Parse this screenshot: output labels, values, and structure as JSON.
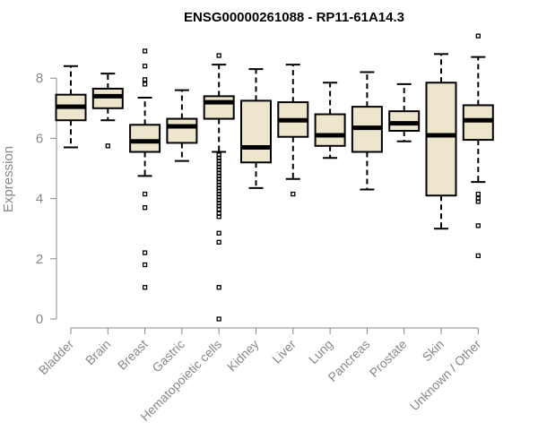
{
  "chart_data": {
    "type": "boxplot",
    "title": "ENSG00000261088 - RP11-61A14.3",
    "ylabel": "Expression",
    "ylim": [
      0,
      9.5
    ],
    "yticks": [
      0,
      2,
      4,
      6,
      8
    ],
    "box_fill": "#ede5cc",
    "categories": [
      "Bladder",
      "Brain",
      "Breast",
      "Gastric",
      "Hematopoietic cells",
      "Kidney",
      "Liver",
      "Lung",
      "Pancreas",
      "Prostate",
      "Skin",
      "Unknown / Other"
    ],
    "boxes": [
      {
        "min": 5.7,
        "q1": 6.6,
        "median": 7.05,
        "q3": 7.45,
        "max": 8.4,
        "outliers": []
      },
      {
        "min": 6.6,
        "q1": 7.0,
        "median": 7.4,
        "q3": 7.65,
        "max": 8.15,
        "outliers": [
          5.75
        ]
      },
      {
        "min": 4.75,
        "q1": 5.55,
        "median": 5.9,
        "q3": 6.45,
        "max": 7.35,
        "outliers": [
          8.9,
          8.4,
          7.95,
          7.8,
          4.15,
          3.7,
          2.2,
          1.8,
          1.05
        ]
      },
      {
        "min": 5.25,
        "q1": 5.85,
        "median": 6.4,
        "q3": 6.65,
        "max": 7.6,
        "outliers": []
      },
      {
        "min": 5.55,
        "q1": 6.65,
        "median": 7.2,
        "q3": 7.4,
        "max": 8.45,
        "outliers": [
          8.75,
          5.45,
          5.35,
          5.25,
          5.15,
          5.05,
          4.95,
          4.85,
          4.75,
          4.65,
          4.55,
          4.45,
          4.35,
          4.25,
          4.15,
          4.05,
          3.95,
          3.85,
          3.75,
          3.65,
          3.5,
          3.4,
          2.85,
          2.55,
          1.05,
          0.0
        ]
      },
      {
        "min": 4.35,
        "q1": 5.2,
        "median": 5.7,
        "q3": 7.25,
        "max": 8.3,
        "outliers": []
      },
      {
        "min": 4.65,
        "q1": 6.05,
        "median": 6.6,
        "q3": 7.2,
        "max": 8.45,
        "outliers": [
          4.15
        ]
      },
      {
        "min": 5.35,
        "q1": 5.75,
        "median": 6.1,
        "q3": 6.8,
        "max": 7.85,
        "outliers": []
      },
      {
        "min": 4.3,
        "q1": 5.55,
        "median": 6.35,
        "q3": 7.05,
        "max": 8.2,
        "outliers": []
      },
      {
        "min": 5.9,
        "q1": 6.25,
        "median": 6.5,
        "q3": 6.9,
        "max": 7.8,
        "outliers": []
      },
      {
        "min": 3.0,
        "q1": 4.1,
        "median": 6.1,
        "q3": 7.85,
        "max": 8.8,
        "outliers": []
      },
      {
        "min": 4.55,
        "q1": 5.95,
        "median": 6.6,
        "q3": 7.1,
        "max": 8.7,
        "outliers": [
          9.4,
          4.15,
          4.0,
          3.9,
          3.1,
          2.1
        ]
      }
    ]
  }
}
